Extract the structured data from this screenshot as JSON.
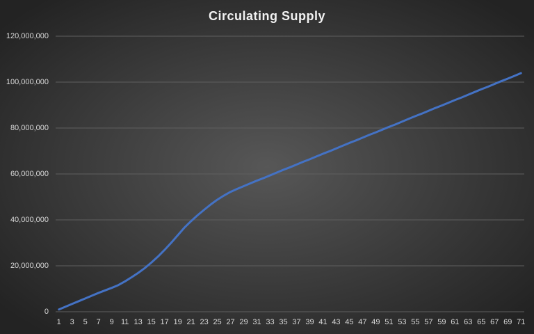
{
  "chart_data": {
    "type": "line",
    "title": "Circulating Supply",
    "categories": [
      1,
      null,
      3,
      null,
      5,
      null,
      7,
      null,
      9,
      null,
      11,
      null,
      13,
      null,
      15,
      null,
      17,
      null,
      19,
      null,
      21,
      null,
      23,
      null,
      25,
      null,
      27,
      null,
      29,
      null,
      31,
      null,
      33,
      null,
      35,
      null,
      37,
      null,
      39,
      null,
      41,
      null,
      43,
      null,
      45,
      null,
      47,
      null,
      49,
      null,
      51,
      null,
      53,
      null,
      55,
      null,
      57,
      null,
      59,
      null,
      61,
      null,
      63,
      null,
      65,
      null,
      67,
      null,
      69,
      null,
      71
    ],
    "values": [
      1000000,
      2200000,
      3400000,
      4600000,
      5800000,
      7000000,
      8200000,
      9300000,
      10400000,
      11600000,
      13200000,
      15000000,
      16900000,
      19000000,
      21400000,
      24000000,
      26900000,
      30000000,
      33300000,
      36600000,
      39400000,
      42000000,
      44400000,
      46700000,
      48800000,
      50600000,
      52200000,
      53500000,
      54700000,
      55900000,
      57100000,
      58200000,
      59400000,
      60600000,
      61800000,
      62900000,
      64100000,
      65300000,
      66400000,
      67600000,
      68800000,
      69900000,
      71100000,
      72300000,
      73500000,
      74600000,
      75800000,
      77000000,
      78100000,
      79300000,
      80500000,
      81600000,
      82800000,
      84000000,
      85200000,
      86300000,
      87500000,
      88700000,
      89800000,
      91000000,
      92200000,
      93300000,
      94500000,
      95700000,
      96900000,
      98000000,
      99200000,
      100400000,
      101500000,
      102700000,
      103900000
    ],
    "color": "#4472c4",
    "ylim": [
      0,
      120000000
    ],
    "yticks": [
      0,
      {
        "value": 20000000,
        "label": "20,000,000"
      },
      {
        "value": 40000000,
        "label": "40,000,000"
      },
      {
        "value": 60000000,
        "label": "60,000,000"
      },
      {
        "value": 80000000,
        "label": "80,000,000"
      },
      {
        "value": 100000000,
        "label": "100,000,000"
      },
      {
        "value": 120000000,
        "label": "120,000,000"
      }
    ],
    "grid": true
  }
}
